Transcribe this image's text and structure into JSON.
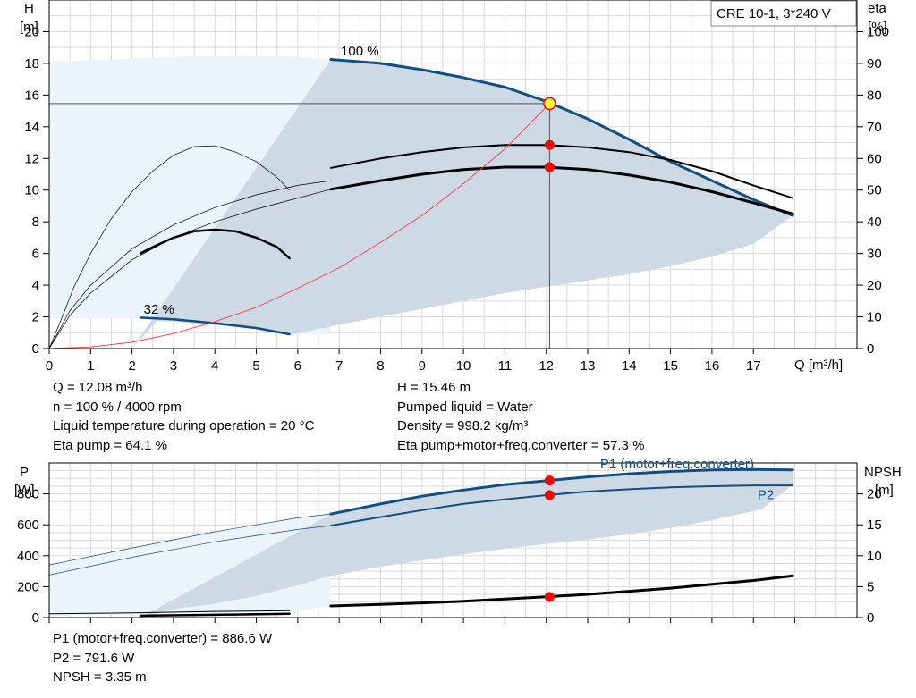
{
  "model_box": "CRE 10-1, 3*240 V",
  "chart_data": [
    {
      "type": "line",
      "name": "head-chart",
      "xlabel": "Q [m³/h]",
      "ylabel_left": [
        "H",
        "[m]"
      ],
      "ylabel_right": [
        "eta",
        "[%]"
      ],
      "xlim": [
        0,
        19.5
      ],
      "xticks": [
        0,
        1,
        2,
        3,
        4,
        5,
        6,
        7,
        8,
        9,
        10,
        11,
        12,
        13,
        14,
        15,
        16,
        17
      ],
      "ylim": [
        0,
        22
      ],
      "yticks_left": [
        0,
        2,
        4,
        6,
        8,
        10,
        12,
        14,
        16,
        18,
        20
      ],
      "ylim_right": [
        0,
        110
      ],
      "yticks_right": [
        0,
        10,
        20,
        30,
        40,
        50,
        60,
        70,
        80,
        90,
        100
      ],
      "grid": true,
      "annotations": [
        {
          "text": "100 %",
          "x": 7.5,
          "y": 18.5
        },
        {
          "text": "32 %",
          "x": 2.65,
          "y": 2.2
        }
      ],
      "envelope_light": [
        [
          0,
          18.1
        ],
        [
          1,
          18.2
        ],
        [
          2,
          18.3
        ],
        [
          3,
          18.4
        ],
        [
          4,
          18.45
        ],
        [
          5,
          18.45
        ],
        [
          6,
          18.4
        ],
        [
          6.8,
          18.25
        ],
        [
          6.8,
          0.9
        ],
        [
          5.8,
          0.9
        ],
        [
          5,
          1.2
        ],
        [
          4,
          1.5
        ],
        [
          3,
          1.7
        ],
        [
          2.2,
          1.85
        ],
        [
          2,
          1.9
        ],
        [
          1,
          1.9
        ],
        [
          0,
          1.9
        ]
      ],
      "envelope_dark": [
        [
          2,
          0
        ],
        [
          6.8,
          18.25
        ],
        [
          8,
          18.0
        ],
        [
          9,
          17.6
        ],
        [
          10,
          17.1
        ],
        [
          11,
          16.5
        ],
        [
          12,
          15.6
        ],
        [
          13,
          14.5
        ],
        [
          14,
          13.2
        ],
        [
          15,
          11.8
        ],
        [
          16,
          10.6
        ],
        [
          17,
          9.4
        ],
        [
          17.95,
          8.4
        ],
        [
          17,
          6.6
        ],
        [
          16,
          5.8
        ],
        [
          15,
          5.2
        ],
        [
          14,
          4.7
        ],
        [
          13,
          4.3
        ],
        [
          12,
          3.9
        ],
        [
          11,
          3.5
        ],
        [
          10,
          3.0
        ],
        [
          9,
          2.5
        ],
        [
          8,
          2.0
        ],
        [
          7,
          1.5
        ],
        [
          5.8,
          0.85
        ],
        [
          5,
          1.2
        ],
        [
          4,
          1.5
        ],
        [
          3,
          1.7
        ],
        [
          2.6,
          1.75
        ]
      ],
      "series": [
        {
          "name": "100 %",
          "style": "head-max",
          "points": [
            [
              6.8,
              18.25
            ],
            [
              8,
              18.0
            ],
            [
              9,
              17.6
            ],
            [
              10,
              17.1
            ],
            [
              11,
              16.5
            ],
            [
              12,
              15.6
            ],
            [
              13,
              14.5
            ],
            [
              14,
              13.2
            ],
            [
              15,
              11.8
            ],
            [
              16,
              10.6
            ],
            [
              17,
              9.4
            ],
            [
              17.95,
              8.4
            ]
          ]
        },
        {
          "name": "32 %",
          "style": "head-min",
          "points": [
            [
              2.2,
              1.95
            ],
            [
              3,
              1.85
            ],
            [
              4,
              1.6
            ],
            [
              5,
              1.3
            ],
            [
              5.8,
              0.9
            ]
          ]
        },
        {
          "style": "eta-ext",
          "points": [
            [
              6.8,
              11.4
            ],
            [
              8,
              12.0
            ],
            [
              9,
              12.4
            ],
            [
              10,
              12.7
            ],
            [
              11,
              12.85
            ],
            [
              12,
              12.85
            ],
            [
              13,
              12.7
            ],
            [
              14,
              12.4
            ],
            [
              15,
              11.9
            ],
            [
              16,
              11.2
            ],
            [
              17,
              10.3
            ],
            [
              17.95,
              9.5
            ]
          ]
        },
        {
          "style": "eta",
          "points": [
            [
              6.8,
              10.05
            ],
            [
              8,
              10.6
            ],
            [
              9,
              11.0
            ],
            [
              10,
              11.3
            ],
            [
              11,
              11.45
            ],
            [
              12,
              11.45
            ],
            [
              13,
              11.3
            ],
            [
              14,
              10.95
            ],
            [
              15,
              10.5
            ],
            [
              16,
              9.9
            ],
            [
              17,
              9.2
            ],
            [
              17.95,
              8.5
            ]
          ]
        },
        {
          "style": "eta-min-ext",
          "points": [
            [
              0,
              0
            ],
            [
              0.3,
              1.9
            ],
            [
              0.6,
              3.9
            ],
            [
              1,
              6.0
            ],
            [
              1.5,
              8.2
            ],
            [
              2,
              9.9
            ],
            [
              2.5,
              11.2
            ],
            [
              3,
              12.2
            ],
            [
              3.5,
              12.75
            ],
            [
              4,
              12.8
            ],
            [
              4.5,
              12.4
            ],
            [
              5,
              11.8
            ],
            [
              5.5,
              10.8
            ],
            [
              5.8,
              10.0
            ]
          ]
        },
        {
          "style": "eta-min",
          "points": [
            [
              2.2,
              6.0
            ],
            [
              2.5,
              6.4
            ],
            [
              3,
              7.0
            ],
            [
              3.5,
              7.4
            ],
            [
              4,
              7.5
            ],
            [
              4.5,
              7.4
            ],
            [
              5,
              7.0
            ],
            [
              5.5,
              6.4
            ],
            [
              5.8,
              5.7
            ]
          ]
        },
        {
          "style": "eta-line-a",
          "points": [
            [
              0,
              0
            ],
            [
              0.5,
              2.4
            ],
            [
              1,
              4.0
            ],
            [
              2,
              6.3
            ],
            [
              3,
              7.8
            ],
            [
              4,
              8.9
            ],
            [
              5,
              9.7
            ],
            [
              6,
              10.3
            ],
            [
              6.8,
              10.6
            ]
          ]
        },
        {
          "style": "eta-line-b",
          "points": [
            [
              0,
              0
            ],
            [
              0.5,
              2.1
            ],
            [
              1,
              3.5
            ],
            [
              2,
              5.6
            ],
            [
              3,
              7.0
            ],
            [
              4,
              8.0
            ],
            [
              5,
              8.8
            ],
            [
              6,
              9.5
            ],
            [
              6.8,
              10.05
            ]
          ]
        },
        {
          "style": "system",
          "points": [
            [
              0,
              0
            ],
            [
              1,
              0.1
            ],
            [
              2,
              0.4
            ],
            [
              3,
              0.95
            ],
            [
              4,
              1.7
            ],
            [
              5,
              2.6
            ],
            [
              6,
              3.8
            ],
            [
              7,
              5.1
            ],
            [
              8,
              6.7
            ],
            [
              9,
              8.4
            ],
            [
              10,
              10.4
            ],
            [
              11,
              12.6
            ],
            [
              12.08,
              15.46
            ]
          ]
        }
      ],
      "duty_point": {
        "q": 12.08,
        "h": 15.46
      },
      "markers": [
        {
          "q": 12.08,
          "h": 12.85
        },
        {
          "q": 12.08,
          "h": 11.45
        }
      ]
    },
    {
      "type": "line",
      "name": "power-chart",
      "ylabel_left": [
        "P",
        "[W]"
      ],
      "ylabel_right": [
        "NPSH",
        "[m]"
      ],
      "xlim": [
        0,
        19.5
      ],
      "ylim": [
        0,
        1000
      ],
      "yticks_left": [
        0,
        200,
        400,
        600,
        800
      ],
      "ylim_right": [
        0,
        25
      ],
      "yticks_right": [
        0,
        5,
        10,
        15,
        20
      ],
      "grid": true,
      "series_labels": [
        {
          "text": "P1 (motor+freq.converter)",
          "x": 13.3,
          "y": 1000
        },
        {
          "text": "P2",
          "x": 17.1,
          "y": 800
        }
      ],
      "envelope_light": [
        [
          0,
          340
        ],
        [
          1,
          395
        ],
        [
          2,
          450
        ],
        [
          3,
          500
        ],
        [
          4,
          550
        ],
        [
          5,
          600
        ],
        [
          6,
          645
        ],
        [
          6.8,
          680
        ],
        [
          6.8,
          75
        ],
        [
          5.8,
          40
        ],
        [
          4,
          30
        ],
        [
          2,
          20
        ],
        [
          0,
          10
        ]
      ],
      "envelope_dark": [
        [
          2.2,
          0
        ],
        [
          6.8,
          670
        ],
        [
          8,
          735
        ],
        [
          9,
          785
        ],
        [
          10,
          825
        ],
        [
          11,
          860
        ],
        [
          12,
          885
        ],
        [
          13,
          910
        ],
        [
          14,
          930
        ],
        [
          15,
          945
        ],
        [
          16,
          955
        ],
        [
          17,
          955
        ],
        [
          17.95,
          955
        ],
        [
          17.95,
          860
        ],
        [
          17.2,
          700
        ],
        [
          16,
          630
        ],
        [
          15,
          580
        ],
        [
          14,
          540
        ],
        [
          13,
          505
        ],
        [
          12,
          475
        ],
        [
          11,
          445
        ],
        [
          10,
          410
        ],
        [
          9,
          370
        ],
        [
          8,
          330
        ],
        [
          7,
          280
        ],
        [
          6.8,
          270
        ],
        [
          6,
          210
        ],
        [
          5,
          140
        ],
        [
          4,
          90
        ],
        [
          3,
          55
        ]
      ],
      "series": [
        {
          "name": "P1 (motor+freq.converter)",
          "style": "p1",
          "points": [
            [
              6.8,
              670
            ],
            [
              8,
              735
            ],
            [
              9,
              785
            ],
            [
              10,
              825
            ],
            [
              11,
              860
            ],
            [
              12,
              885
            ],
            [
              13,
              910
            ],
            [
              14,
              930
            ],
            [
              15,
              945
            ],
            [
              16,
              955
            ],
            [
              17,
              958
            ],
            [
              17.95,
              955
            ]
          ]
        },
        {
          "name": "P2",
          "style": "p2",
          "points": [
            [
              6.8,
              595
            ],
            [
              8,
              650
            ],
            [
              9,
              695
            ],
            [
              10,
              735
            ],
            [
              11,
              765
            ],
            [
              12,
              792
            ],
            [
              13,
              815
            ],
            [
              14,
              830
            ],
            [
              15,
              843
            ],
            [
              16,
              850
            ],
            [
              17,
              855
            ],
            [
              17.95,
              855
            ]
          ]
        },
        {
          "style": "p1-ext",
          "points": [
            [
              0,
              340
            ],
            [
              2,
              450
            ],
            [
              4,
              555
            ],
            [
              6,
              645
            ],
            [
              6.8,
              670
            ]
          ]
        },
        {
          "style": "p2-ext",
          "points": [
            [
              0,
              275
            ],
            [
              2,
              390
            ],
            [
              4,
              490
            ],
            [
              6,
              570
            ],
            [
              6.8,
              595
            ]
          ]
        },
        {
          "style": "npsh",
          "points": [
            [
              6.8,
              75
            ],
            [
              8,
              85
            ],
            [
              9,
              95
            ],
            [
              10,
              105
            ],
            [
              11,
              120
            ],
            [
              12,
              134
            ],
            [
              13,
              150
            ],
            [
              14,
              170
            ],
            [
              15,
              190
            ],
            [
              16,
              215
            ],
            [
              17,
              240
            ],
            [
              17.95,
              270
            ]
          ]
        },
        {
          "style": "npsh-min",
          "points": [
            [
              0,
              25
            ],
            [
              2,
              30
            ],
            [
              4,
              40
            ],
            [
              5.8,
              45
            ]
          ]
        },
        {
          "style": "npsh-min2",
          "points": [
            [
              2.2,
              12
            ],
            [
              4,
              18
            ],
            [
              5.8,
              25
            ]
          ]
        }
      ],
      "markers": [
        {
          "q": 12.08,
          "p": 886.6
        },
        {
          "q": 12.08,
          "p": 791.6
        },
        {
          "q": 12.08,
          "p": 134
        }
      ]
    }
  ],
  "duty_info_left": [
    "Q = 12.08 m³/h",
    "n = 100 % / 4000 rpm",
    "Liquid temperature during operation = 20 °C",
    "Eta pump = 64.1 %"
  ],
  "duty_info_right": [
    "H = 15.46 m",
    "Pumped liquid = Water",
    "Density = 998.2 kg/m³",
    "Eta pump+motor+freq.converter = 57.3 %"
  ],
  "power_info": [
    "P1 (motor+freq.converter) = 886.6 W",
    "P2 = 791.6 W",
    "NPSH = 3.35 m"
  ],
  "colors": {
    "grid": "#d9d9d9",
    "light_fill": "#ebf3fc",
    "dark_fill": "#cdd9e5",
    "curve_blue": "#124e80",
    "system_red": "#ff3b3b",
    "marker_red": "#ff0000",
    "duty_yellow": "#ffff33"
  }
}
